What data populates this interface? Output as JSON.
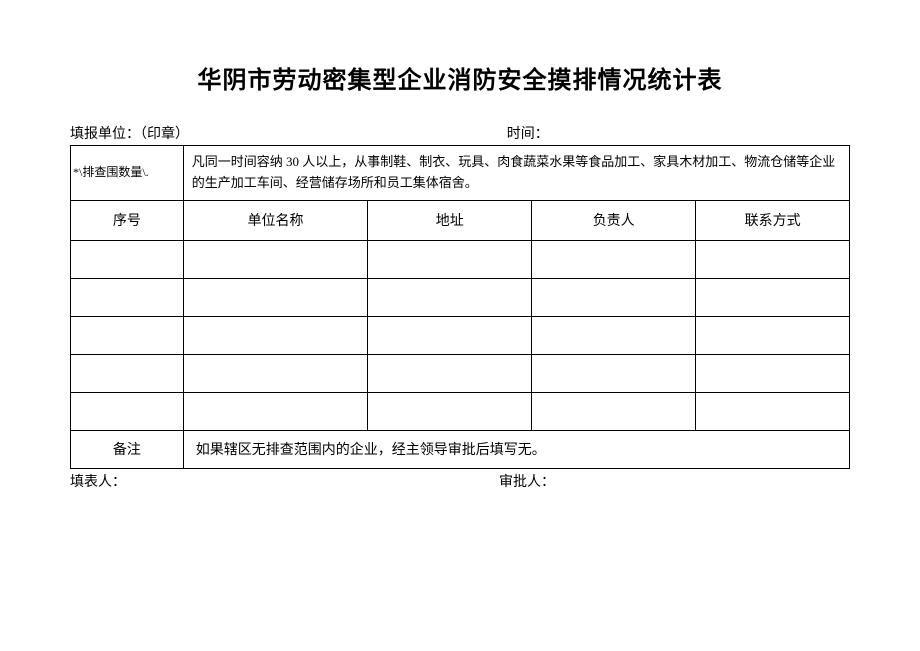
{
  "title": "华阴市劳动密集型企业消防安全摸排情况统计表",
  "header": {
    "left": "填报单位：（印章）",
    "right": "时间："
  },
  "table": {
    "scope_label": "*\\排查围数量\\.",
    "scope_desc": "凡同一时间容纳 30 人以上，从事制鞋、制衣、玩具、肉食蔬菜水果等食品加工、家具木材加工、物流仓储等企业的生产加工车间、经营储存场所和员工集体宿舍。",
    "columns": [
      "序号",
      "单位名称",
      "地址",
      "负责人",
      "联系方式"
    ],
    "remark_label": "备注",
    "remark_text": "如果辖区无排查范围内的企业，经主领导审批后填写无。"
  },
  "footer": {
    "left": "填表人：",
    "right": "审批人："
  },
  "style": {
    "title_fontsize": 24,
    "body_fontsize": 14,
    "cell_fontsize": 13,
    "border_color": "#000000",
    "background_color": "#ffffff",
    "text_color": "#000000",
    "empty_rows": 5
  }
}
